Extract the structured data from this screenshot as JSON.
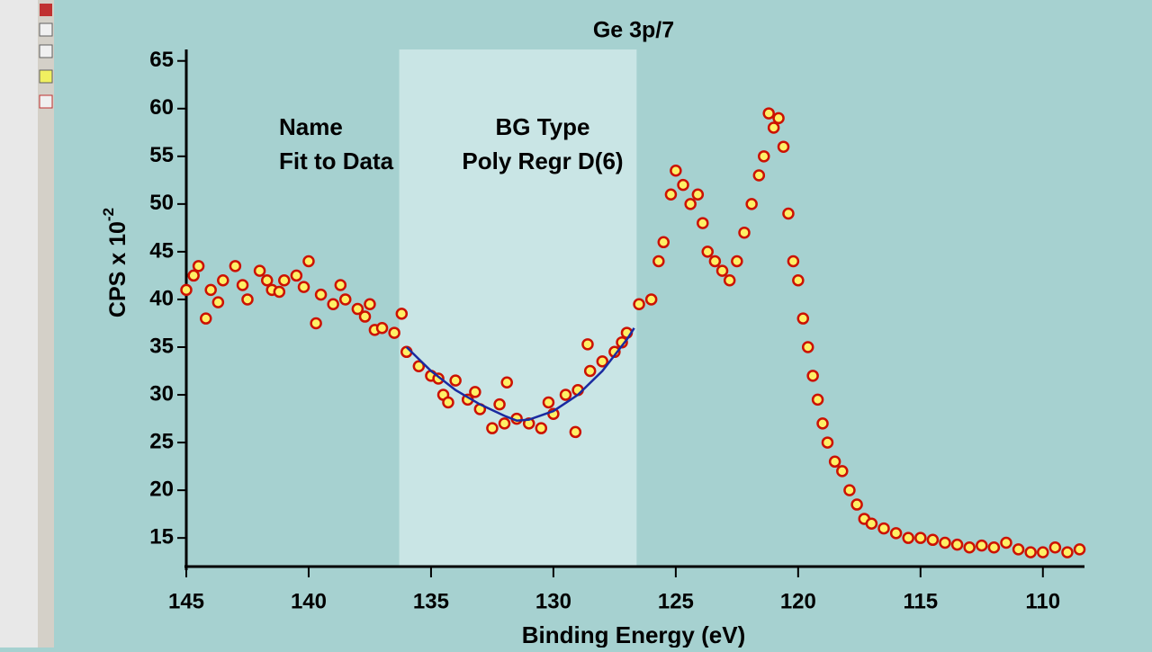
{
  "chart_data": {
    "type": "scatter",
    "title": "Ge 3p/7",
    "x_label": "Binding Energy (eV)",
    "y_label": "CPS x 10",
    "y_label_superscript": "-2",
    "annotations": [
      "Name",
      "Fit to Data",
      "BG Type",
      "Poly Regr D(6)"
    ],
    "shaded_region": [
      136.3,
      126.6
    ],
    "xlim": [
      145,
      108.3
    ],
    "ylim": [
      12,
      66.2
    ],
    "xticks": [
      145,
      140,
      135,
      130,
      125,
      120,
      115,
      110
    ],
    "yticks": [
      15,
      20,
      25,
      30,
      35,
      40,
      45,
      50,
      55,
      60,
      65
    ],
    "marker_color": "#fff066",
    "marker_edge_color": "#cc1100",
    "fit_color": "#1a2aa0",
    "points": {
      "x": [
        145,
        144.7,
        144.5,
        144.2,
        144,
        143.7,
        143.5,
        143,
        142.7,
        142.5,
        142,
        141.7,
        141.5,
        141.2,
        141,
        140.5,
        140.2,
        140,
        139.7,
        139.5,
        139,
        138.7,
        138.5,
        138,
        137.7,
        137.5,
        137.3,
        137,
        136.5,
        136.2,
        136,
        135.5,
        135,
        134.7,
        134.5,
        134.3,
        134,
        133.5,
        133.2,
        133,
        132.5,
        132.2,
        132,
        131.9,
        131.5,
        131,
        130.5,
        130.2,
        130,
        129.5,
        129.1,
        129,
        128.6,
        128.5,
        128,
        127.5,
        127.2,
        127,
        126.5,
        126,
        125.7,
        125.5,
        125.2,
        125,
        124.7,
        124.4,
        124.1,
        123.9,
        123.7,
        123.4,
        123.1,
        122.8,
        122.5,
        122.2,
        121.9,
        121.6,
        121.4,
        121.2,
        121,
        120.8,
        120.6,
        120.4,
        120.2,
        120,
        119.8,
        119.6,
        119.4,
        119.2,
        119,
        118.8,
        118.5,
        118.2,
        117.9,
        117.6,
        117.3,
        117,
        116.5,
        116,
        115.5,
        115,
        114.5,
        114,
        113.5,
        113,
        112.5,
        112,
        111.5,
        111,
        110.5,
        110,
        109.5,
        109,
        108.5
      ],
      "y": [
        41,
        42.5,
        43.5,
        38,
        41,
        39.7,
        42,
        43.5,
        41.5,
        40,
        43,
        42,
        41,
        40.8,
        42,
        42.5,
        41.3,
        44,
        37.5,
        40.5,
        39.5,
        41.5,
        40,
        39,
        38.2,
        39.5,
        36.8,
        37,
        36.5,
        38.5,
        34.5,
        33,
        32,
        31.7,
        30,
        29.2,
        31.5,
        29.5,
        30.3,
        28.5,
        26.5,
        29,
        27,
        31.3,
        27.5,
        27,
        26.5,
        29.2,
        28,
        30,
        26.1,
        30.5,
        35.3,
        32.5,
        33.5,
        34.5,
        35.5,
        36.5,
        39.5,
        40,
        44,
        46,
        51,
        53.5,
        52,
        50,
        51,
        48,
        45,
        44,
        43,
        42,
        44,
        47,
        50,
        53,
        55,
        59.5,
        58,
        59,
        56,
        49,
        44,
        42,
        38,
        35,
        32,
        29.5,
        27,
        25,
        23,
        22,
        20,
        18.5,
        17,
        16.5,
        16,
        15.5,
        15,
        15,
        14.8,
        14.5,
        14.3,
        14,
        14.2,
        14,
        14.5,
        13.8,
        13.5,
        13.5,
        14,
        13.5,
        13.8
      ]
    },
    "fit": {
      "x": [
        136,
        135,
        134,
        133,
        132,
        131.5,
        131,
        130,
        129,
        128,
        127,
        126.7
      ],
      "y": [
        35,
        32.5,
        30.5,
        29,
        27.8,
        27.3,
        27.4,
        28.3,
        30,
        32.5,
        35.8,
        37
      ]
    }
  }
}
